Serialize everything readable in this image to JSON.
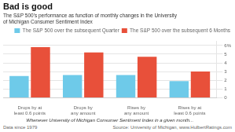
{
  "chart_data": {
    "type": "bar",
    "title": "Bad is good",
    "subtitle": "The S&P 500's performance as function of monthly changes in the University\nof Michigan Consumer Sentiment Index",
    "categories": [
      "Drops by at\nleast 0.6 points",
      "Drops by\nany amount",
      "Rises by\nany amount",
      "Rises by at\nleast 0.6 points"
    ],
    "xlabel": "Whenever University of Michigan Consumer Sentiment Index in a given month...",
    "annotations": [
      "Data since 1979",
      "Source: University of Michigan, www.HulbertRatings.com"
    ],
    "series": [
      {
        "name": "The S&P 500 over the subsequent Quarter",
        "color": "#6ecae9",
        "values": [
          2.5,
          2.6,
          2.6,
          1.9
        ]
      },
      {
        "name": "The S&P 500 over the subsequent 6 Months",
        "color": "#e8503a",
        "values": [
          5.8,
          5.2,
          4.7,
          3.0
        ]
      }
    ],
    "ylim": [
      0,
      6.5
    ],
    "yticks": [
      0,
      1,
      2,
      3,
      4,
      5,
      {
        "value": 6,
        "label": "6%"
      }
    ],
    "grid": true,
    "legend": "upper right"
  }
}
